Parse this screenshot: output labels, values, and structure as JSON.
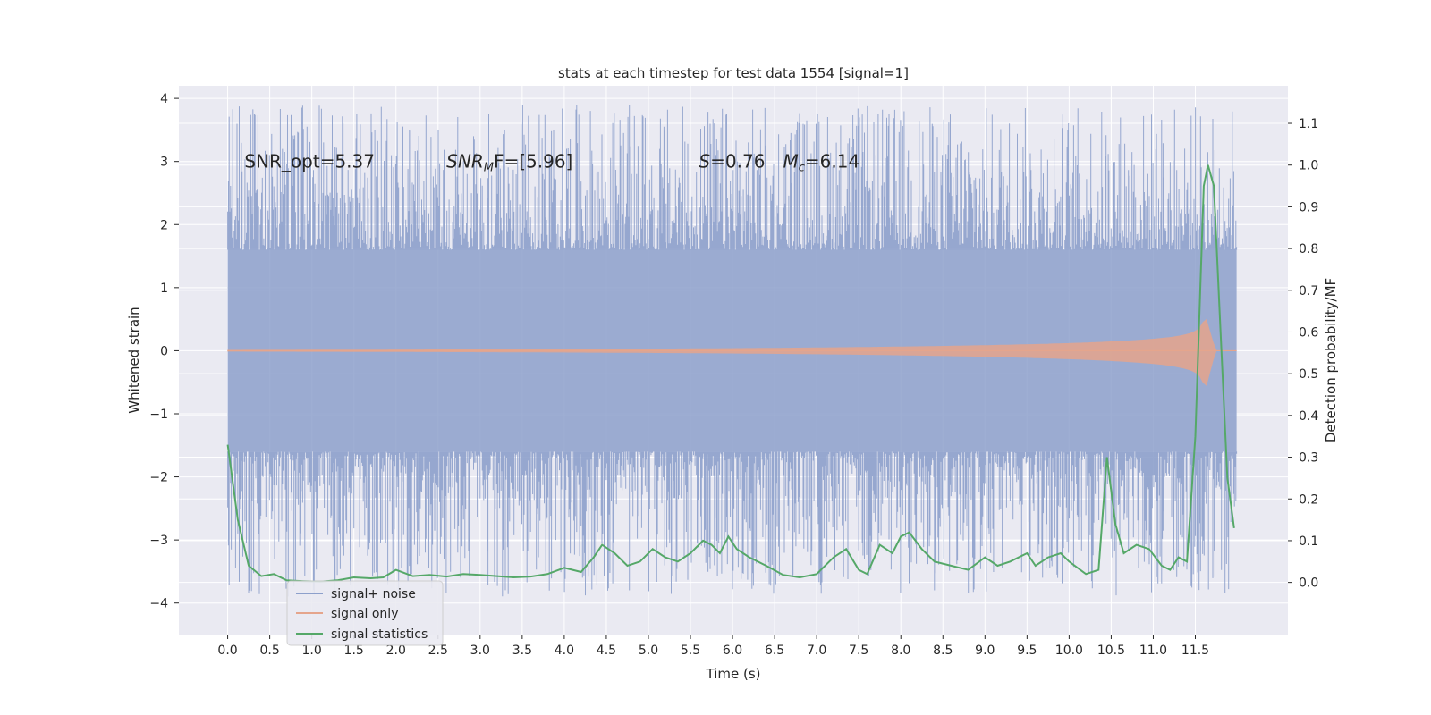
{
  "chart_data": {
    "type": "line",
    "title": "stats at each timestep for test data 1554 [signal=1]",
    "xlabel": "Time (s)",
    "ylabel": "Whitened strain",
    "y2label": "Detection probability/MF",
    "xlim": [
      -0.58,
      12.6
    ],
    "ylim": [
      -4.5,
      4.2
    ],
    "y2lim": [
      -0.125,
      1.19
    ],
    "xticks": [
      "0.0",
      "0.5",
      "1.0",
      "1.5",
      "2.0",
      "2.5",
      "3.0",
      "3.5",
      "4.0",
      "4.5",
      "5.0",
      "5.5",
      "6.0",
      "6.5",
      "7.0",
      "7.5",
      "8.0",
      "8.5",
      "9.0",
      "9.5",
      "10.0",
      "10.5",
      "11.0",
      "11.5"
    ],
    "yticks": [
      -4,
      -3,
      -2,
      -1,
      0,
      1,
      2,
      3,
      4
    ],
    "y2ticks": [
      "0.0",
      "0.1",
      "0.2",
      "0.3",
      "0.4",
      "0.5",
      "0.6",
      "0.7",
      "0.8",
      "0.9",
      "1.0",
      "1.1"
    ],
    "grid": true,
    "legend_position": "lower-left",
    "annotations": [
      {
        "text": "SNR_opt=5.37",
        "x": 0.2,
        "y": 3.0
      },
      {
        "text": "SNR",
        "sub": "M",
        "rest": "F=[5.96]",
        "x": 2.6,
        "y": 3.0
      },
      {
        "text": "S",
        "rest": "=0.76",
        "x": 5.6,
        "y": 3.0
      },
      {
        "text": "M",
        "sub": "c",
        "rest": "=6.14",
        "x": 6.6,
        "y": 3.0
      }
    ],
    "series": [
      {
        "name": "signal+ noise",
        "color": "#8da0cb",
        "axis": "left",
        "noise": {
          "x_start": 0.0,
          "x_end": 11.99,
          "core_amplitude": 1.6
        }
      },
      {
        "name": "signal only",
        "color": "#e5a58c",
        "axis": "left",
        "chirp": {
          "x_start": 0.0,
          "x_end": 11.99,
          "peak_x": 11.62,
          "peak_amplitude": 0.6
        }
      },
      {
        "name": "signal statistics",
        "color": "#55a868",
        "axis": "right",
        "x": [
          0.0,
          0.12,
          0.25,
          0.4,
          0.55,
          0.7,
          0.9,
          1.1,
          1.3,
          1.5,
          1.7,
          1.85,
          2.0,
          2.2,
          2.4,
          2.6,
          2.8,
          3.0,
          3.2,
          3.4,
          3.6,
          3.8,
          4.0,
          4.2,
          4.35,
          4.45,
          4.6,
          4.75,
          4.9,
          5.05,
          5.2,
          5.35,
          5.5,
          5.65,
          5.75,
          5.85,
          5.95,
          6.05,
          6.2,
          6.4,
          6.6,
          6.8,
          7.0,
          7.2,
          7.35,
          7.5,
          7.6,
          7.75,
          7.9,
          8.0,
          8.1,
          8.25,
          8.4,
          8.6,
          8.8,
          9.0,
          9.15,
          9.3,
          9.5,
          9.6,
          9.75,
          9.9,
          10.0,
          10.2,
          10.35,
          10.45,
          10.55,
          10.65,
          10.8,
          10.95,
          11.1,
          11.2,
          11.3,
          11.4,
          11.5,
          11.6,
          11.65,
          11.72,
          11.8,
          11.88,
          11.96
        ],
        "values": [
          0.33,
          0.15,
          0.04,
          0.015,
          0.02,
          0.005,
          0.003,
          0.002,
          0.005,
          0.012,
          0.01,
          0.012,
          0.03,
          0.015,
          0.018,
          0.014,
          0.02,
          0.018,
          0.015,
          0.012,
          0.014,
          0.02,
          0.035,
          0.025,
          0.06,
          0.09,
          0.07,
          0.04,
          0.05,
          0.08,
          0.06,
          0.05,
          0.07,
          0.1,
          0.09,
          0.07,
          0.11,
          0.08,
          0.06,
          0.04,
          0.018,
          0.012,
          0.02,
          0.06,
          0.08,
          0.03,
          0.02,
          0.09,
          0.07,
          0.11,
          0.12,
          0.08,
          0.05,
          0.04,
          0.03,
          0.06,
          0.04,
          0.05,
          0.07,
          0.04,
          0.06,
          0.07,
          0.05,
          0.02,
          0.03,
          0.3,
          0.14,
          0.07,
          0.09,
          0.08,
          0.04,
          0.03,
          0.06,
          0.05,
          0.35,
          0.95,
          1.0,
          0.95,
          0.6,
          0.25,
          0.13
        ]
      }
    ]
  }
}
